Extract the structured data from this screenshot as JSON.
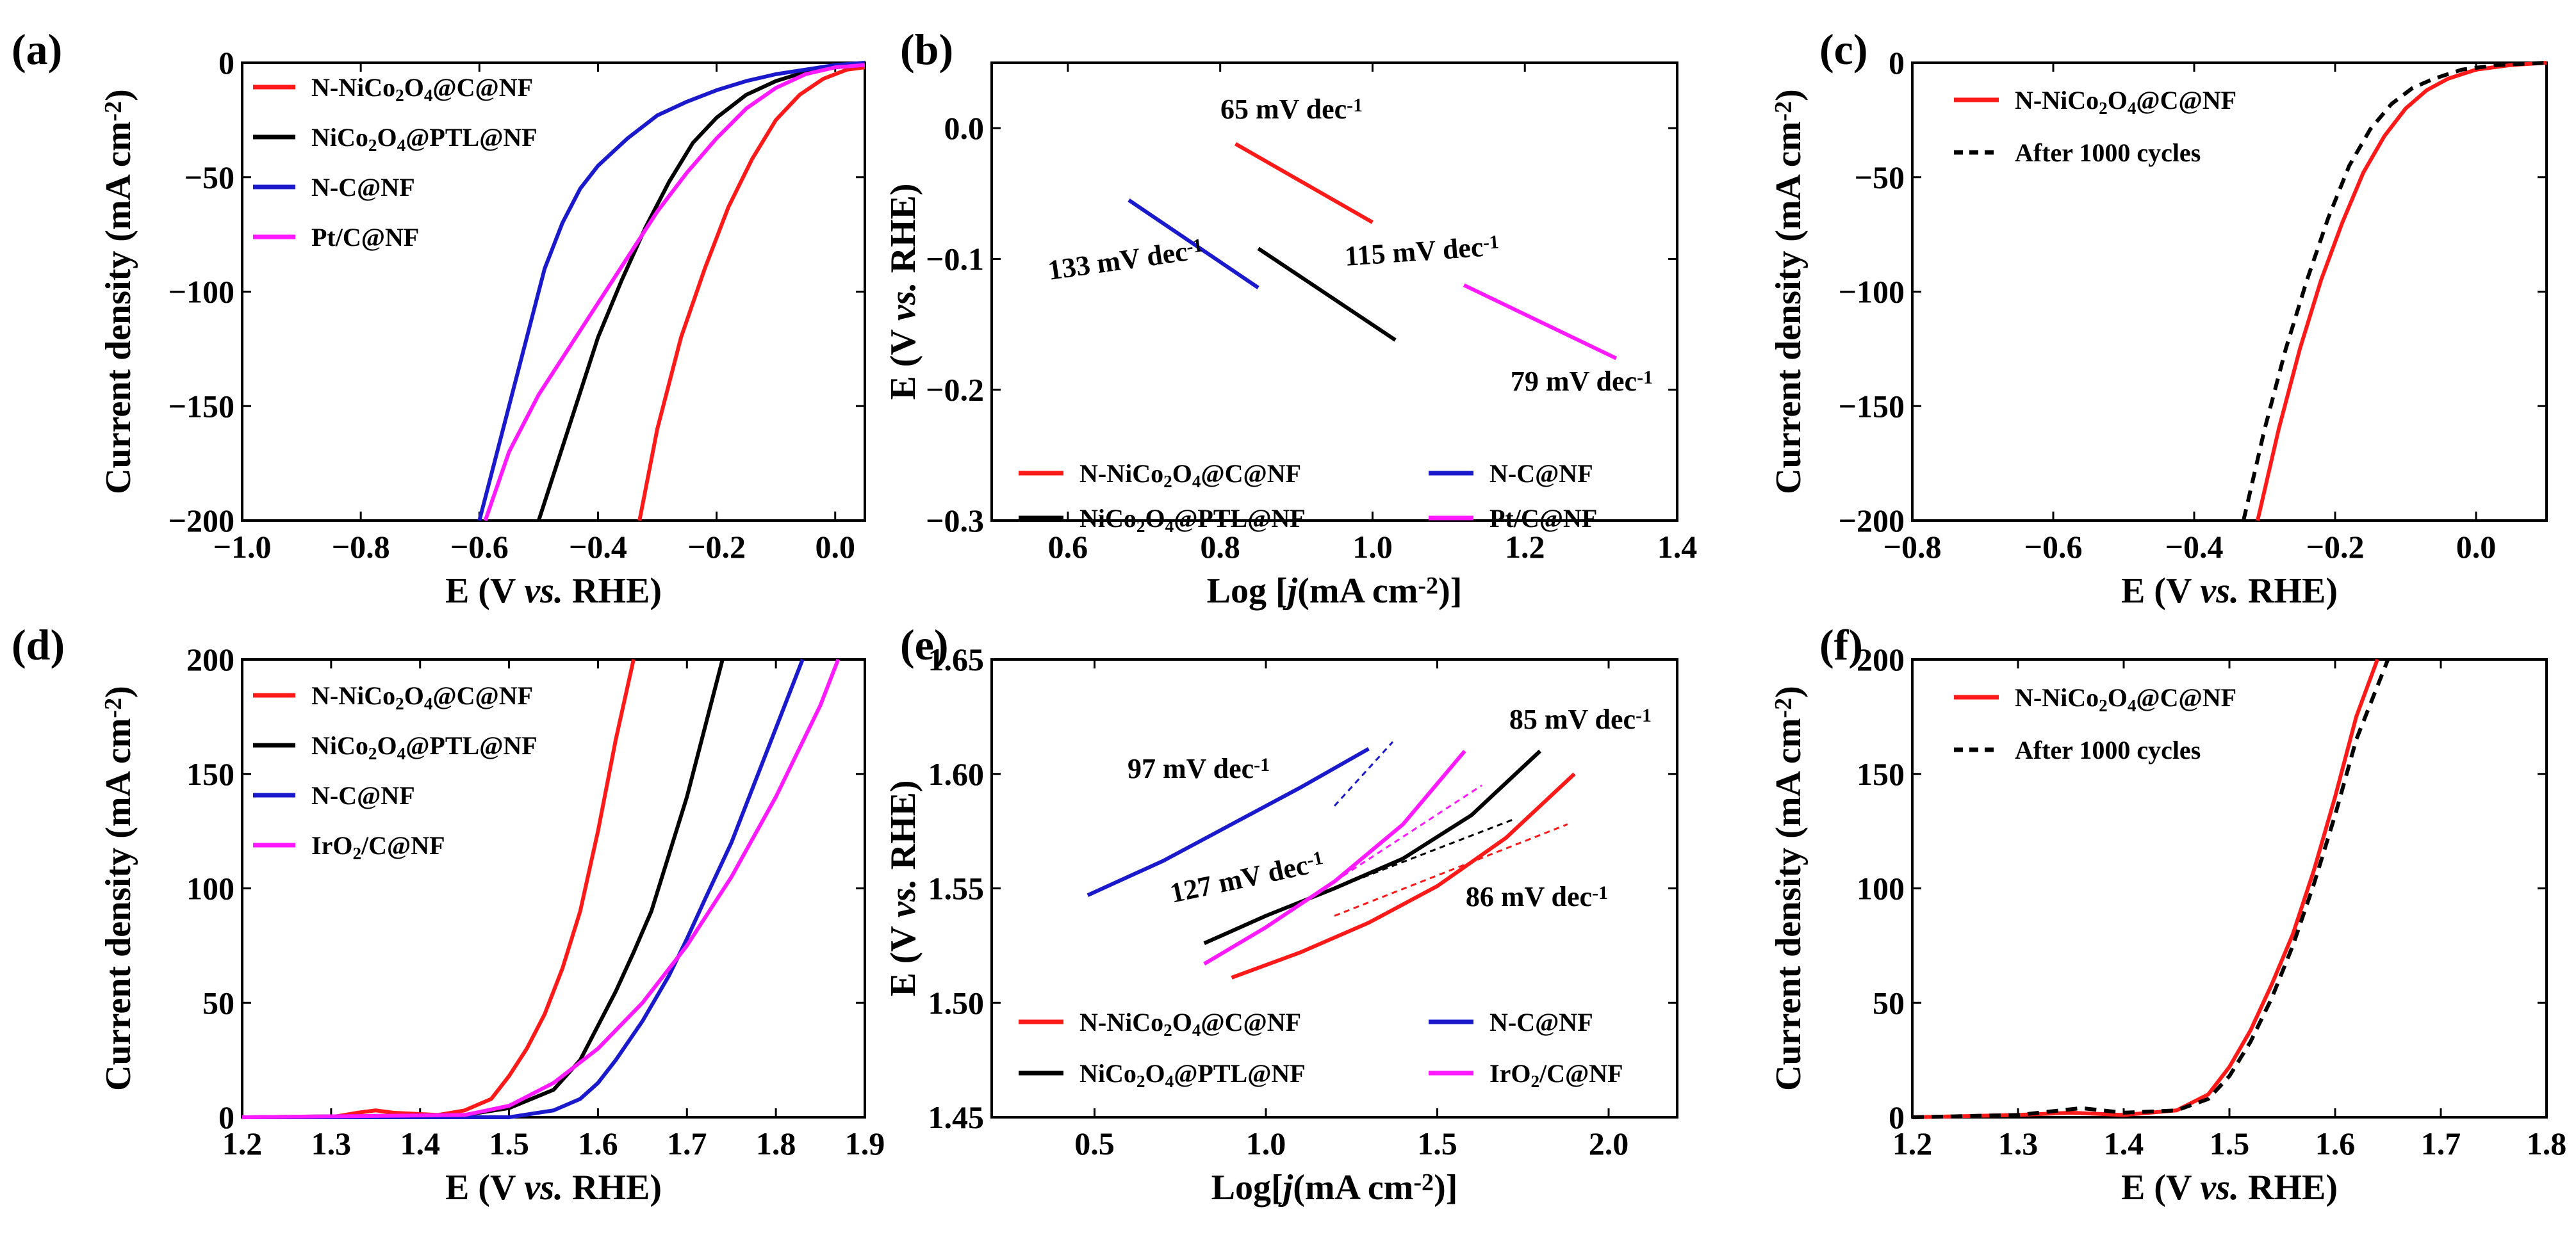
{
  "colors": {
    "red": "#ff1a1a",
    "black": "#000000",
    "blue": "#1a1acc",
    "magenta": "#ff1aff"
  },
  "chart_data": [
    {
      "id": "a",
      "type": "line",
      "panel_label": "(a)",
      "xlabel": "E (V vs. RHE)",
      "ylabel": "Current density (mA cm⁻²)",
      "xlim": [
        -1.0,
        0.05
      ],
      "ylim": [
        -200,
        0
      ],
      "x_ticks": [
        "-1.0",
        "-0.8",
        "-0.6",
        "-0.4",
        "-0.2",
        "0.0"
      ],
      "y_ticks": [
        "-200",
        "-150",
        "-100",
        "-50",
        "0"
      ],
      "legend_position": "top-left",
      "series": [
        {
          "name": "N-NiCo₂O₄@C@NF",
          "color": "red",
          "x": [
            -0.33,
            -0.3,
            -0.26,
            -0.22,
            -0.18,
            -0.14,
            -0.1,
            -0.06,
            -0.02,
            0.02,
            0.05
          ],
          "values": [
            -200,
            -160,
            -120,
            -90,
            -63,
            -42,
            -25,
            -14,
            -7,
            -3,
            -2
          ]
        },
        {
          "name": "NiCo₂O₄@PTL@NF",
          "color": "black",
          "x": [
            -0.5,
            -0.45,
            -0.4,
            -0.36,
            -0.32,
            -0.28,
            -0.24,
            -0.2,
            -0.15,
            -0.1,
            -0.05,
            0.0,
            0.05
          ],
          "values": [
            -200,
            -160,
            -120,
            -95,
            -72,
            -52,
            -35,
            -24,
            -14,
            -8,
            -4,
            -2,
            -1
          ]
        },
        {
          "name": "N-C@NF",
          "color": "blue",
          "x": [
            -0.6,
            -0.56,
            -0.52,
            -0.49,
            -0.46,
            -0.43,
            -0.4,
            -0.35,
            -0.3,
            -0.25,
            -0.2,
            -0.15,
            -0.1,
            -0.05,
            0.0,
            0.05
          ],
          "values": [
            -200,
            -160,
            -120,
            -90,
            -70,
            -55,
            -45,
            -33,
            -23,
            -17,
            -12,
            -8,
            -5,
            -3,
            -1,
            0
          ]
        },
        {
          "name": "Pt/C@NF",
          "color": "magenta",
          "x": [
            -0.59,
            -0.55,
            -0.5,
            -0.45,
            -0.4,
            -0.35,
            -0.3,
            -0.25,
            -0.2,
            -0.15,
            -0.1,
            -0.05,
            0.0,
            0.05
          ],
          "values": [
            -200,
            -170,
            -145,
            -125,
            -105,
            -85,
            -65,
            -48,
            -33,
            -20,
            -11,
            -5,
            -2,
            -1
          ]
        }
      ]
    },
    {
      "id": "b",
      "type": "line",
      "panel_label": "(b)",
      "xlabel": "Log [j(mA cm⁻²)]",
      "ylabel": "E (V vs. RHE)",
      "xlim": [
        0.5,
        1.4
      ],
      "ylim": [
        -0.3,
        0.05
      ],
      "x_ticks": [
        "0.6",
        "0.8",
        "1.0",
        "1.2",
        "1.4"
      ],
      "y_ticks": [
        "-0.3",
        "-0.2",
        "-0.1",
        "0.0"
      ],
      "legend_position": "bottom",
      "series": [
        {
          "name": "N-NiCo₂O₄@C@NF",
          "color": "red",
          "x": [
            0.82,
            1.0
          ],
          "values": [
            -0.012,
            -0.072
          ]
        },
        {
          "name": "N-C@NF",
          "color": "blue",
          "x": [
            0.68,
            0.85
          ],
          "values": [
            -0.055,
            -0.122
          ]
        },
        {
          "name": "NiCo₂O₄@PTL@NF",
          "color": "black",
          "x": [
            0.85,
            1.03
          ],
          "values": [
            -0.092,
            -0.162
          ]
        },
        {
          "name": "Pt/C@NF",
          "color": "magenta",
          "x": [
            1.12,
            1.32
          ],
          "values": [
            -0.12,
            -0.176
          ]
        }
      ],
      "annotations": [
        {
          "text": "65 mV dec⁻¹",
          "color": "red"
        },
        {
          "text": "133 mV dec⁻¹",
          "color": "blue"
        },
        {
          "text": "115 mV dec⁻¹",
          "color": "black"
        },
        {
          "text": "79 mV dec⁻¹",
          "color": "magenta"
        }
      ]
    },
    {
      "id": "c",
      "type": "line",
      "panel_label": "(c)",
      "xlabel": "E (V vs. RHE)",
      "ylabel": "Current density (mA cm⁻²)",
      "xlim": [
        -0.8,
        0.1
      ],
      "ylim": [
        -200,
        0
      ],
      "x_ticks": [
        "-0.8",
        "-0.6",
        "-0.4",
        "-0.2",
        "0.0"
      ],
      "y_ticks": [
        "-200",
        "-150",
        "-100",
        "-50",
        "0"
      ],
      "legend_position": "top-left",
      "series": [
        {
          "name": "N-NiCo₂O₄@C@NF",
          "color": "red",
          "style": "solid",
          "x": [
            -0.31,
            -0.28,
            -0.25,
            -0.22,
            -0.19,
            -0.16,
            -0.13,
            -0.1,
            -0.07,
            -0.04,
            0.0,
            0.05,
            0.1
          ],
          "values": [
            -200,
            -160,
            -125,
            -95,
            -70,
            -48,
            -32,
            -20,
            -12,
            -7,
            -3,
            -1,
            0
          ]
        },
        {
          "name": "After 1000 cycles",
          "color": "black",
          "style": "dashed",
          "x": [
            -0.33,
            -0.3,
            -0.27,
            -0.24,
            -0.21,
            -0.18,
            -0.15,
            -0.12,
            -0.09,
            -0.06,
            -0.02,
            0.03,
            0.1
          ],
          "values": [
            -200,
            -160,
            -125,
            -95,
            -68,
            -45,
            -29,
            -18,
            -11,
            -7,
            -3,
            -1,
            0
          ]
        }
      ]
    },
    {
      "id": "d",
      "type": "line",
      "panel_label": "(d)",
      "xlabel": "E (V vs. RHE)",
      "ylabel": "Current density (mA cm⁻²)",
      "xlim": [
        1.2,
        1.9
      ],
      "ylim": [
        0,
        200
      ],
      "x_ticks": [
        "1.2",
        "1.3",
        "1.4",
        "1.5",
        "1.6",
        "1.7",
        "1.8",
        "1.9"
      ],
      "y_ticks": [
        "0",
        "50",
        "100",
        "150",
        "200"
      ],
      "legend_position": "top-left",
      "series": [
        {
          "name": "N-NiCo₂O₄@C@NF",
          "color": "red",
          "x": [
            1.2,
            1.3,
            1.33,
            1.35,
            1.37,
            1.42,
            1.45,
            1.48,
            1.5,
            1.52,
            1.54,
            1.56,
            1.58,
            1.6,
            1.62,
            1.64
          ],
          "values": [
            0,
            0,
            2,
            3,
            2,
            1,
            3,
            8,
            18,
            30,
            45,
            65,
            90,
            125,
            165,
            200
          ]
        },
        {
          "name": "NiCo₂O₄@PTL@NF",
          "color": "black",
          "x": [
            1.2,
            1.45,
            1.5,
            1.55,
            1.58,
            1.6,
            1.62,
            1.64,
            1.66,
            1.68,
            1.7,
            1.72,
            1.74
          ],
          "values": [
            0,
            1,
            4,
            12,
            25,
            40,
            55,
            72,
            90,
            115,
            140,
            170,
            200
          ]
        },
        {
          "name": "N-C@NF",
          "color": "blue",
          "x": [
            1.2,
            1.5,
            1.55,
            1.58,
            1.6,
            1.62,
            1.65,
            1.68,
            1.7,
            1.72,
            1.75,
            1.78,
            1.8,
            1.83
          ],
          "values": [
            0,
            0,
            3,
            8,
            15,
            25,
            42,
            62,
            78,
            95,
            120,
            150,
            170,
            200
          ]
        },
        {
          "name": "IrO₂/C@NF",
          "color": "magenta",
          "x": [
            1.2,
            1.45,
            1.5,
            1.55,
            1.6,
            1.65,
            1.7,
            1.75,
            1.8,
            1.85,
            1.87
          ],
          "values": [
            0,
            1,
            5,
            15,
            30,
            50,
            75,
            105,
            140,
            180,
            200
          ]
        }
      ]
    },
    {
      "id": "e",
      "type": "line",
      "panel_label": "(e)",
      "xlabel": "Log[j(mA cm⁻²)]",
      "ylabel": "E (V vs. RHE)",
      "xlim": [
        0.2,
        2.2
      ],
      "ylim": [
        1.45,
        1.65
      ],
      "x_ticks": [
        "0.5",
        "1.0",
        "1.5",
        "2.0"
      ],
      "y_ticks": [
        "1.45",
        "1.50",
        "1.55",
        "1.60",
        "1.65"
      ],
      "legend_position": "bottom",
      "series": [
        {
          "name": "N-NiCo₂O₄@C@NF",
          "color": "red",
          "x": [
            0.9,
            1.1,
            1.3,
            1.5,
            1.7,
            1.9
          ],
          "values": [
            1.511,
            1.522,
            1.535,
            1.551,
            1.572,
            1.6
          ]
        },
        {
          "name": "N-C@NF",
          "color": "blue",
          "x": [
            0.48,
            0.7,
            0.9,
            1.1,
            1.3
          ],
          "values": [
            1.547,
            1.562,
            1.578,
            1.594,
            1.611
          ]
        },
        {
          "name": "NiCo₂O₄@PTL@NF",
          "color": "black",
          "x": [
            0.82,
            1.0,
            1.2,
            1.4,
            1.6,
            1.8
          ],
          "values": [
            1.526,
            1.538,
            1.55,
            1.563,
            1.582,
            1.61
          ]
        },
        {
          "name": "IrO₂/C@NF",
          "color": "magenta",
          "x": [
            0.82,
            1.0,
            1.2,
            1.4,
            1.58
          ],
          "values": [
            1.517,
            1.533,
            1.553,
            1.578,
            1.61
          ]
        }
      ],
      "fits": [
        {
          "color": "red",
          "x": [
            1.2,
            1.88
          ],
          "values": [
            1.538,
            1.578
          ]
        },
        {
          "color": "black",
          "x": [
            1.2,
            1.72
          ],
          "values": [
            1.55,
            1.58
          ]
        },
        {
          "color": "magenta",
          "x": [
            1.2,
            1.63
          ],
          "values": [
            1.553,
            1.595
          ]
        },
        {
          "color": "blue",
          "x": [
            1.2,
            1.37
          ],
          "values": [
            1.586,
            1.614
          ]
        }
      ],
      "annotations": [
        {
          "text": "97 mV dec⁻¹",
          "color": "blue"
        },
        {
          "text": "85 mV dec⁻¹",
          "color": "black"
        },
        {
          "text": "127 mV dec⁻¹",
          "color": "magenta"
        },
        {
          "text": "86 mV dec⁻¹",
          "color": "red"
        }
      ]
    },
    {
      "id": "f",
      "type": "line",
      "panel_label": "(f)",
      "xlabel": "E (V vs. RHE)",
      "ylabel": "Current density (mA cm⁻²)",
      "xlim": [
        1.2,
        1.8
      ],
      "ylim": [
        0,
        200
      ],
      "x_ticks": [
        "1.2",
        "1.3",
        "1.4",
        "1.5",
        "1.6",
        "1.7",
        "1.8"
      ],
      "y_ticks": [
        "0",
        "50",
        "100",
        "150",
        "200"
      ],
      "legend_position": "top-left",
      "series": [
        {
          "name": "N-NiCo₂O₄@C@NF",
          "color": "red",
          "style": "solid",
          "x": [
            1.2,
            1.3,
            1.35,
            1.4,
            1.45,
            1.48,
            1.5,
            1.52,
            1.54,
            1.56,
            1.58,
            1.6,
            1.62,
            1.64
          ],
          "values": [
            0,
            1,
            2,
            1,
            3,
            10,
            22,
            38,
            58,
            80,
            108,
            140,
            175,
            200
          ]
        },
        {
          "name": "After 1000 cycles",
          "color": "black",
          "style": "dashed",
          "x": [
            1.2,
            1.3,
            1.36,
            1.4,
            1.45,
            1.48,
            1.5,
            1.52,
            1.54,
            1.56,
            1.58,
            1.6,
            1.62,
            1.65
          ],
          "values": [
            0,
            1,
            4,
            2,
            3,
            8,
            18,
            33,
            52,
            75,
            102,
            132,
            165,
            200
          ]
        }
      ]
    }
  ]
}
